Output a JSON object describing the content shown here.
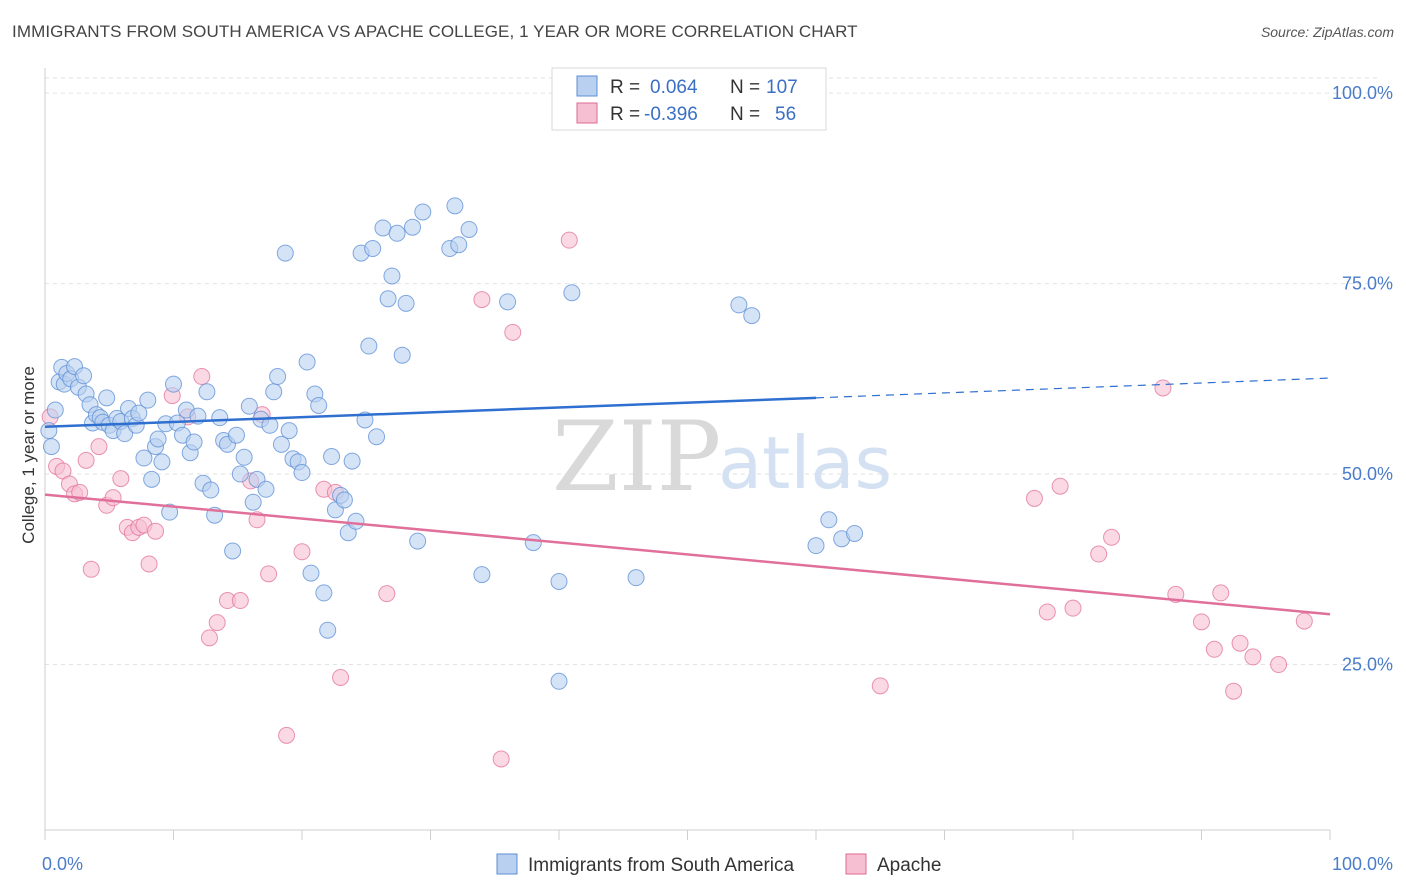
{
  "title": "IMMIGRANTS FROM SOUTH AMERICA VS APACHE COLLEGE, 1 YEAR OR MORE CORRELATION CHART",
  "source": "Source: ZipAtlas.com",
  "watermark": {
    "zip": "ZIP",
    "atlas": "atlas"
  },
  "colors": {
    "blue": "#5b8ed6",
    "blue_fill": "#b9d0f0",
    "pink": "#e06a96",
    "pink_fill": "#f6c0d2",
    "blue_line": "#2f6fd0",
    "pink_line": "#e0709a"
  },
  "legend": {
    "rows": [
      {
        "r_label": "R =",
        "r_value": "0.064",
        "n_label": "N =",
        "n_value": "107"
      },
      {
        "r_label": "R =",
        "r_value": "-0.396",
        "n_label": "N =",
        "n_value": "56"
      }
    ]
  },
  "chart_data": {
    "type": "scatter",
    "ylabel": "College, 1 year or more",
    "xlim": [
      0,
      100
    ],
    "ylim": [
      0,
      105
    ],
    "x_tick_labels": [
      "0.0%",
      "100.0%"
    ],
    "y_ticks": [
      {
        "value": 25,
        "label": "25.0%"
      },
      {
        "value": 50,
        "label": "50.0%"
      },
      {
        "value": 75,
        "label": "75.0%"
      },
      {
        "value": 100,
        "label": "100.0%"
      }
    ],
    "grid": "horizontal-dashed",
    "legend_placement": "top-center",
    "series": [
      {
        "name": "Immigrants from South America",
        "color": "#5b8ed6",
        "trend": {
          "x0": 0,
          "y0": 56.2,
          "x1": 60,
          "y1": 60.0,
          "dash_to_x": 100,
          "dash_to_y": 62.6
        },
        "points": [
          [
            0.3,
            55.7
          ],
          [
            0.5,
            53.6
          ],
          [
            0.8,
            58.4
          ],
          [
            1.1,
            62.1
          ],
          [
            1.3,
            64.0
          ],
          [
            1.5,
            61.8
          ],
          [
            1.7,
            63.2
          ],
          [
            2.0,
            62.5
          ],
          [
            2.3,
            64.1
          ],
          [
            2.6,
            61.4
          ],
          [
            3.0,
            62.9
          ],
          [
            3.2,
            60.5
          ],
          [
            3.5,
            59.1
          ],
          [
            3.7,
            56.7
          ],
          [
            4.0,
            57.8
          ],
          [
            4.3,
            57.4
          ],
          [
            4.5,
            56.8
          ],
          [
            4.8,
            60.0
          ],
          [
            5.0,
            56.4
          ],
          [
            5.3,
            55.7
          ],
          [
            5.6,
            57.3
          ],
          [
            5.9,
            56.9
          ],
          [
            6.2,
            55.3
          ],
          [
            6.5,
            58.6
          ],
          [
            6.8,
            57.3
          ],
          [
            7.1,
            56.4
          ],
          [
            7.3,
            58.0
          ],
          [
            7.7,
            52.1
          ],
          [
            8.0,
            59.7
          ],
          [
            8.3,
            49.3
          ],
          [
            8.6,
            53.6
          ],
          [
            8.8,
            54.6
          ],
          [
            9.1,
            51.6
          ],
          [
            9.4,
            56.6
          ],
          [
            9.7,
            45.0
          ],
          [
            10.0,
            61.8
          ],
          [
            10.3,
            56.7
          ],
          [
            10.7,
            55.1
          ],
          [
            11.0,
            58.4
          ],
          [
            11.3,
            52.8
          ],
          [
            11.6,
            54.2
          ],
          [
            11.9,
            57.6
          ],
          [
            12.3,
            48.8
          ],
          [
            12.6,
            60.8
          ],
          [
            12.9,
            47.9
          ],
          [
            13.2,
            44.6
          ],
          [
            13.6,
            57.4
          ],
          [
            13.9,
            54.4
          ],
          [
            14.2,
            53.9
          ],
          [
            14.6,
            39.9
          ],
          [
            14.9,
            55.1
          ],
          [
            15.2,
            50.0
          ],
          [
            15.5,
            52.2
          ],
          [
            15.9,
            58.9
          ],
          [
            16.2,
            46.3
          ],
          [
            16.5,
            49.3
          ],
          [
            16.8,
            57.2
          ],
          [
            17.2,
            48.0
          ],
          [
            17.5,
            56.4
          ],
          [
            17.8,
            60.8
          ],
          [
            18.1,
            62.8
          ],
          [
            18.4,
            53.9
          ],
          [
            18.7,
            79.0
          ],
          [
            19.0,
            55.7
          ],
          [
            19.3,
            52.0
          ],
          [
            19.7,
            51.6
          ],
          [
            20.0,
            50.2
          ],
          [
            20.4,
            64.7
          ],
          [
            20.7,
            37.0
          ],
          [
            21.0,
            60.5
          ],
          [
            21.3,
            59.0
          ],
          [
            21.7,
            34.4
          ],
          [
            22.0,
            29.5
          ],
          [
            22.3,
            52.3
          ],
          [
            22.6,
            45.3
          ],
          [
            23.0,
            47.2
          ],
          [
            23.3,
            46.6
          ],
          [
            23.6,
            42.3
          ],
          [
            23.9,
            51.7
          ],
          [
            24.2,
            43.8
          ],
          [
            24.6,
            79.0
          ],
          [
            24.9,
            57.1
          ],
          [
            25.2,
            66.8
          ],
          [
            25.5,
            79.6
          ],
          [
            25.8,
            54.9
          ],
          [
            26.3,
            82.3
          ],
          [
            26.7,
            73.0
          ],
          [
            27.0,
            76.0
          ],
          [
            27.4,
            81.6
          ],
          [
            27.8,
            65.6
          ],
          [
            28.1,
            72.4
          ],
          [
            28.6,
            82.4
          ],
          [
            29.0,
            41.2
          ],
          [
            29.4,
            84.4
          ],
          [
            31.5,
            79.6
          ],
          [
            31.9,
            85.2
          ],
          [
            32.2,
            80.1
          ],
          [
            33.0,
            82.1
          ],
          [
            34.0,
            36.8
          ],
          [
            36.0,
            72.6
          ],
          [
            38.0,
            41.0
          ],
          [
            40.0,
            35.9
          ],
          [
            40.0,
            22.8
          ],
          [
            41.0,
            73.8
          ],
          [
            46.0,
            36.4
          ],
          [
            54.0,
            72.2
          ],
          [
            55.0,
            70.8
          ],
          [
            60.0,
            40.6
          ],
          [
            61.0,
            44.0
          ],
          [
            62.0,
            41.5
          ],
          [
            63.0,
            42.2
          ]
        ]
      },
      {
        "name": "Apache",
        "color": "#e06a96",
        "trend": {
          "x0": 0,
          "y0": 47.3,
          "x1": 100,
          "y1": 31.6
        },
        "points": [
          [
            0.4,
            57.5
          ],
          [
            0.9,
            51.0
          ],
          [
            1.4,
            50.4
          ],
          [
            1.9,
            48.7
          ],
          [
            2.3,
            47.4
          ],
          [
            2.7,
            47.6
          ],
          [
            3.2,
            51.8
          ],
          [
            3.6,
            37.5
          ],
          [
            4.2,
            53.6
          ],
          [
            4.8,
            45.9
          ],
          [
            5.3,
            46.9
          ],
          [
            5.9,
            49.4
          ],
          [
            6.4,
            43.0
          ],
          [
            6.8,
            42.3
          ],
          [
            7.3,
            43.0
          ],
          [
            7.7,
            43.3
          ],
          [
            8.1,
            38.2
          ],
          [
            8.6,
            42.5
          ],
          [
            9.9,
            60.3
          ],
          [
            11.1,
            57.5
          ],
          [
            12.2,
            62.8
          ],
          [
            12.8,
            28.5
          ],
          [
            13.4,
            30.5
          ],
          [
            14.2,
            33.4
          ],
          [
            15.2,
            33.4
          ],
          [
            16.0,
            49.1
          ],
          [
            16.5,
            44.0
          ],
          [
            16.9,
            57.8
          ],
          [
            17.4,
            36.9
          ],
          [
            18.8,
            15.7
          ],
          [
            20.0,
            39.8
          ],
          [
            21.7,
            48.0
          ],
          [
            22.6,
            47.6
          ],
          [
            23.0,
            23.3
          ],
          [
            26.6,
            34.3
          ],
          [
            34.0,
            72.9
          ],
          [
            35.5,
            12.6
          ],
          [
            36.4,
            68.6
          ],
          [
            40.8,
            80.7
          ],
          [
            65.0,
            22.2
          ],
          [
            77.0,
            46.8
          ],
          [
            78.0,
            31.9
          ],
          [
            79.0,
            48.4
          ],
          [
            80.0,
            32.4
          ],
          [
            82.0,
            39.5
          ],
          [
            83.0,
            41.7
          ],
          [
            87.0,
            61.3
          ],
          [
            88.0,
            34.2
          ],
          [
            90.0,
            30.6
          ],
          [
            91.0,
            27.0
          ],
          [
            91.5,
            34.4
          ],
          [
            92.5,
            21.5
          ],
          [
            93.0,
            27.8
          ],
          [
            94.0,
            26.0
          ],
          [
            96.0,
            25.0
          ],
          [
            98.0,
            30.7
          ]
        ]
      }
    ]
  },
  "bottom_legend": [
    {
      "label": "Immigrants from South America"
    },
    {
      "label": "Apache"
    }
  ]
}
